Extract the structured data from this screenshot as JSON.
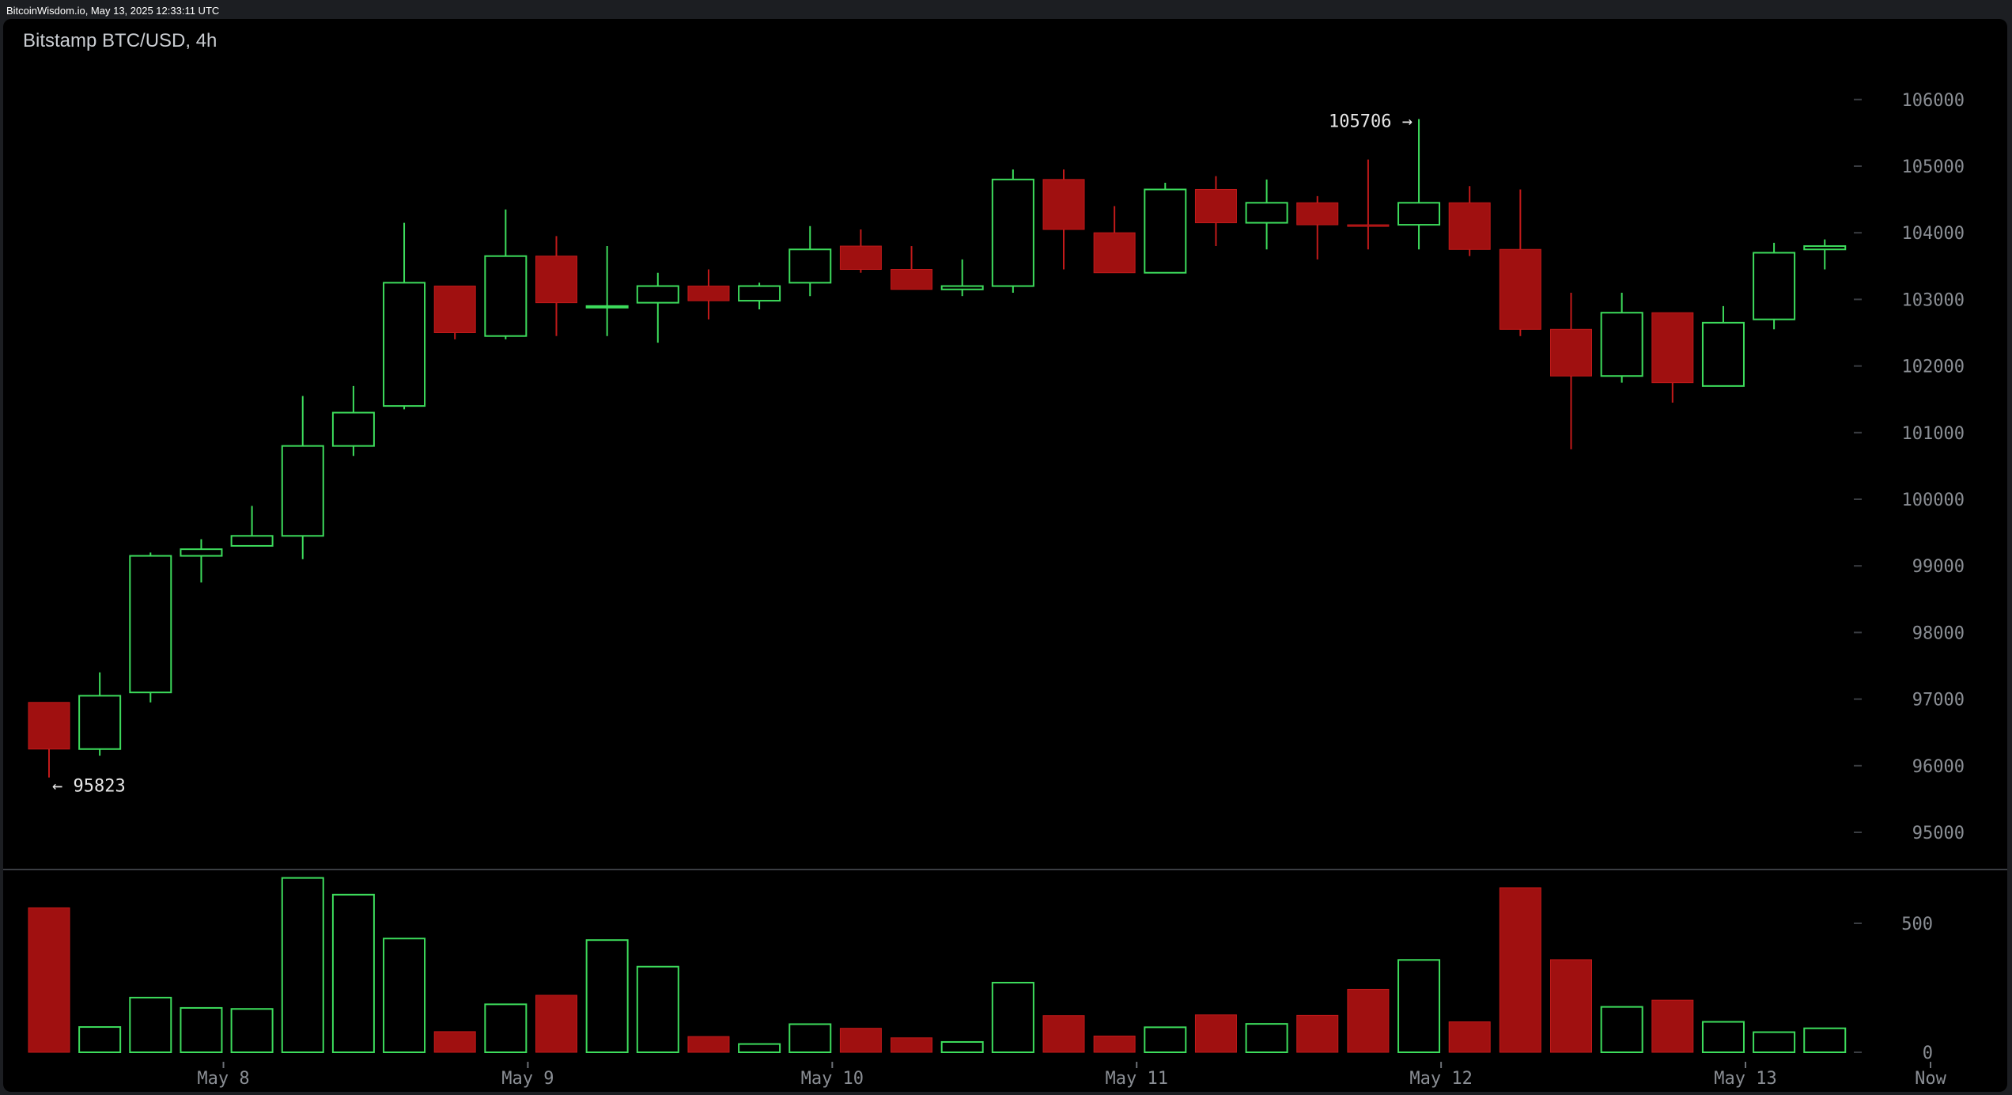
{
  "header": {
    "text": "BitcoinWisdom.io, May 13, 2025 12:33:11 UTC"
  },
  "chart_data": {
    "type": "candlestick",
    "title": "Bitstamp BTC/USD, 4h",
    "price_axis": {
      "ticks": [
        95000,
        96000,
        97000,
        98000,
        99000,
        100000,
        101000,
        102000,
        103000,
        104000,
        105000,
        106000
      ],
      "range": [
        94000,
        106900
      ]
    },
    "volume_axis": {
      "ticks": [
        0,
        500
      ],
      "range": [
        0,
        800
      ]
    },
    "time_axis": {
      "labels": [
        "May 8",
        "May 9",
        "May 10",
        "May 11",
        "May 12",
        "May 13",
        "Now"
      ]
    },
    "annotations": {
      "high_label": "105706 →",
      "low_label": "← 95823"
    },
    "up_color": "#3ddc5c",
    "down_color": "#a01010",
    "candles": [
      {
        "o": 96950,
        "h": 96950,
        "l": 95823,
        "c": 96250,
        "v": 560
      },
      {
        "o": 96250,
        "h": 97400,
        "l": 96150,
        "c": 97050,
        "v": 98
      },
      {
        "o": 97100,
        "h": 99200,
        "l": 96950,
        "c": 99150,
        "v": 212
      },
      {
        "o": 99150,
        "h": 99400,
        "l": 98750,
        "c": 99250,
        "v": 172
      },
      {
        "o": 99300,
        "h": 99900,
        "l": 99300,
        "c": 99450,
        "v": 168
      },
      {
        "o": 99450,
        "h": 101550,
        "l": 99100,
        "c": 100800,
        "v": 676
      },
      {
        "o": 100800,
        "h": 101700,
        "l": 100650,
        "c": 101300,
        "v": 611
      },
      {
        "o": 101400,
        "h": 104150,
        "l": 101350,
        "c": 103250,
        "v": 441
      },
      {
        "o": 103200,
        "h": 103200,
        "l": 102400,
        "c": 102500,
        "v": 80
      },
      {
        "o": 102450,
        "h": 104350,
        "l": 102400,
        "c": 103650,
        "v": 186
      },
      {
        "o": 103650,
        "h": 103950,
        "l": 102450,
        "c": 102950,
        "v": 221
      },
      {
        "o": 102900,
        "h": 103800,
        "l": 102450,
        "c": 102900,
        "v": 435
      },
      {
        "o": 102950,
        "h": 103400,
        "l": 102350,
        "c": 103200,
        "v": 332
      },
      {
        "o": 103200,
        "h": 103450,
        "l": 102700,
        "c": 102980,
        "v": 61
      },
      {
        "o": 102980,
        "h": 103250,
        "l": 102850,
        "c": 103200,
        "v": 32
      },
      {
        "o": 103250,
        "h": 104100,
        "l": 103050,
        "c": 103750,
        "v": 109
      },
      {
        "o": 103800,
        "h": 104050,
        "l": 103400,
        "c": 103450,
        "v": 93
      },
      {
        "o": 103450,
        "h": 103800,
        "l": 103150,
        "c": 103150,
        "v": 56
      },
      {
        "o": 103150,
        "h": 103600,
        "l": 103050,
        "c": 103200,
        "v": 40
      },
      {
        "o": 103200,
        "h": 104950,
        "l": 103100,
        "c": 104800,
        "v": 270
      },
      {
        "o": 104800,
        "h": 104950,
        "l": 103450,
        "c": 104050,
        "v": 142
      },
      {
        "o": 104000,
        "h": 104400,
        "l": 103400,
        "c": 103400,
        "v": 63
      },
      {
        "o": 103400,
        "h": 104750,
        "l": 103400,
        "c": 104650,
        "v": 97
      },
      {
        "o": 104650,
        "h": 104850,
        "l": 103800,
        "c": 104150,
        "v": 145
      },
      {
        "o": 104150,
        "h": 104800,
        "l": 103750,
        "c": 104450,
        "v": 110
      },
      {
        "o": 104450,
        "h": 104550,
        "l": 103600,
        "c": 104120,
        "v": 143
      },
      {
        "o": 104120,
        "h": 105100,
        "l": 103750,
        "c": 104110,
        "v": 244
      },
      {
        "o": 104120,
        "h": 105706,
        "l": 103750,
        "c": 104450,
        "v": 358
      },
      {
        "o": 104450,
        "h": 104700,
        "l": 103650,
        "c": 103750,
        "v": 118
      },
      {
        "o": 103750,
        "h": 104650,
        "l": 102450,
        "c": 102550,
        "v": 638
      },
      {
        "o": 102550,
        "h": 103100,
        "l": 100750,
        "c": 101850,
        "v": 359
      },
      {
        "o": 101850,
        "h": 103100,
        "l": 101750,
        "c": 102800,
        "v": 176
      },
      {
        "o": 102800,
        "h": 102800,
        "l": 101450,
        "c": 101750,
        "v": 202
      },
      {
        "o": 101700,
        "h": 102900,
        "l": 101700,
        "c": 102650,
        "v": 118
      },
      {
        "o": 102700,
        "h": 103850,
        "l": 102550,
        "c": 103700,
        "v": 78
      },
      {
        "o": 103750,
        "h": 103900,
        "l": 103450,
        "c": 103800,
        "v": 93
      }
    ]
  }
}
